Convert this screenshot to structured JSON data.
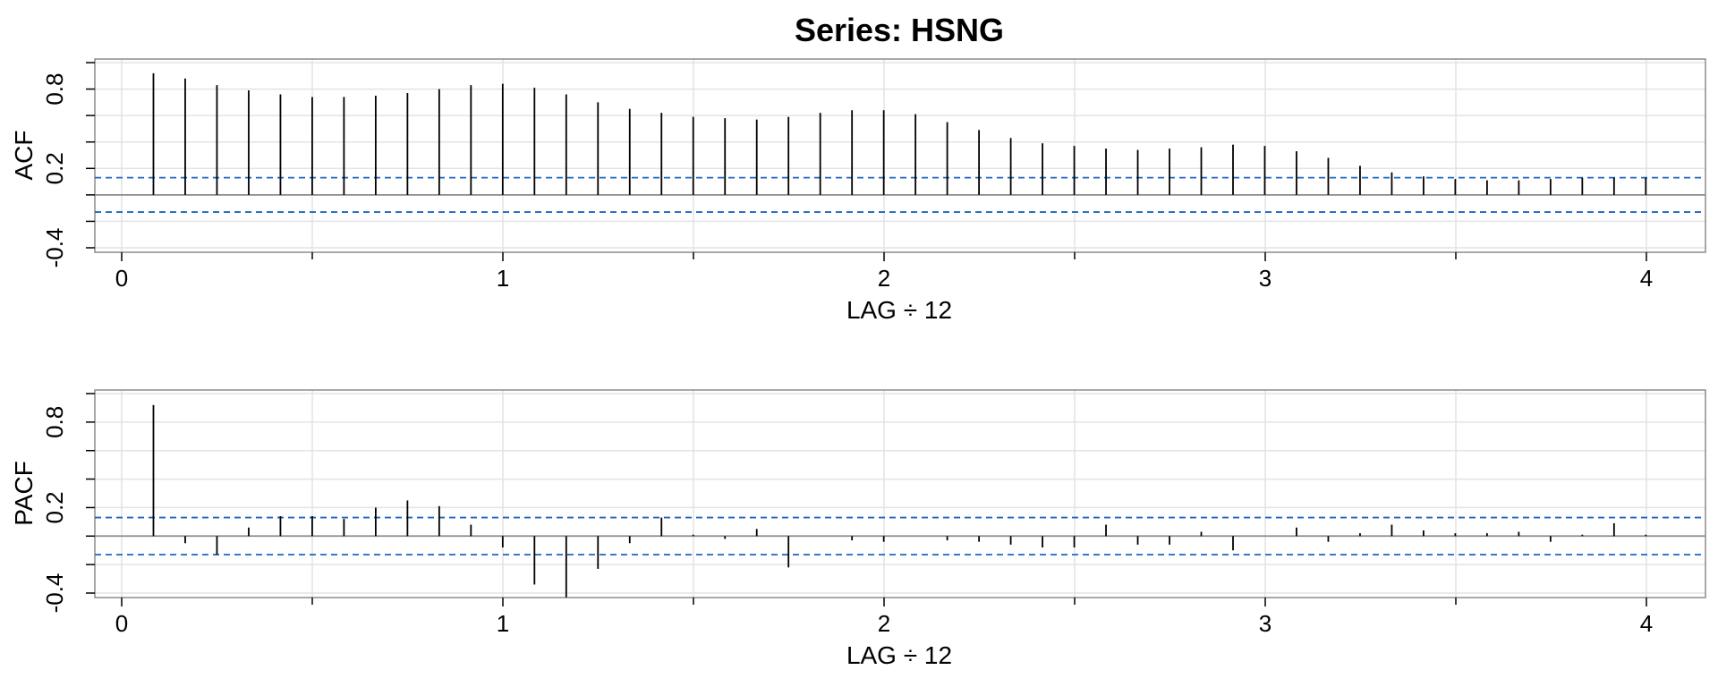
{
  "title": "Series:  HSNG",
  "colors": {
    "bar": "#000000",
    "confidence": "#1f66c0",
    "grid": "#e3e3e3",
    "frame": "#8c8c8c",
    "zero": "#8c8c8c"
  },
  "chart_data": [
    {
      "type": "bar",
      "id": "acf",
      "ylabel": "ACF",
      "xlabel": "LAG ÷ 12",
      "ylim": [
        -0.4,
        1.0
      ],
      "xlim": [
        0,
        4
      ],
      "xticks": [
        "0",
        "1",
        "2",
        "3",
        "4"
      ],
      "yticks": [
        "-0.4",
        "0.2",
        "0.8"
      ],
      "grid": true,
      "confidence_bounds": [
        0.13,
        -0.13
      ],
      "lag_step_years": 0.0833,
      "values": [
        0.92,
        0.88,
        0.83,
        0.79,
        0.76,
        0.74,
        0.74,
        0.75,
        0.77,
        0.8,
        0.83,
        0.84,
        0.81,
        0.76,
        0.7,
        0.65,
        0.62,
        0.59,
        0.58,
        0.57,
        0.59,
        0.62,
        0.64,
        0.64,
        0.61,
        0.55,
        0.49,
        0.43,
        0.39,
        0.37,
        0.35,
        0.34,
        0.35,
        0.36,
        0.38,
        0.37,
        0.33,
        0.28,
        0.22,
        0.17,
        0.14,
        0.12,
        0.11,
        0.11,
        0.12,
        0.13,
        0.13,
        0.13
      ]
    },
    {
      "type": "bar",
      "id": "pacf",
      "ylabel": "PACF",
      "xlabel": "LAG ÷ 12",
      "ylim": [
        -0.4,
        1.0
      ],
      "xlim": [
        0,
        4
      ],
      "xticks": [
        "0",
        "1",
        "2",
        "3",
        "4"
      ],
      "yticks": [
        "-0.4",
        "0.2",
        "0.8"
      ],
      "grid": true,
      "confidence_bounds": [
        0.13,
        -0.13
      ],
      "lag_step_years": 0.0833,
      "values": [
        0.92,
        -0.05,
        -0.13,
        0.06,
        0.14,
        0.14,
        0.12,
        0.2,
        0.25,
        0.21,
        0.08,
        -0.08,
        -0.34,
        -0.43,
        -0.23,
        -0.05,
        0.13,
        0.01,
        -0.02,
        0.05,
        -0.22,
        0.0,
        -0.03,
        -0.04,
        0.0,
        -0.03,
        -0.04,
        -0.06,
        -0.08,
        -0.08,
        0.08,
        -0.06,
        -0.06,
        0.03,
        -0.1,
        0.0,
        0.06,
        -0.04,
        0.02,
        0.08,
        0.04,
        0.02,
        0.02,
        0.03,
        -0.04,
        0.01,
        0.09,
        0.01
      ]
    }
  ]
}
